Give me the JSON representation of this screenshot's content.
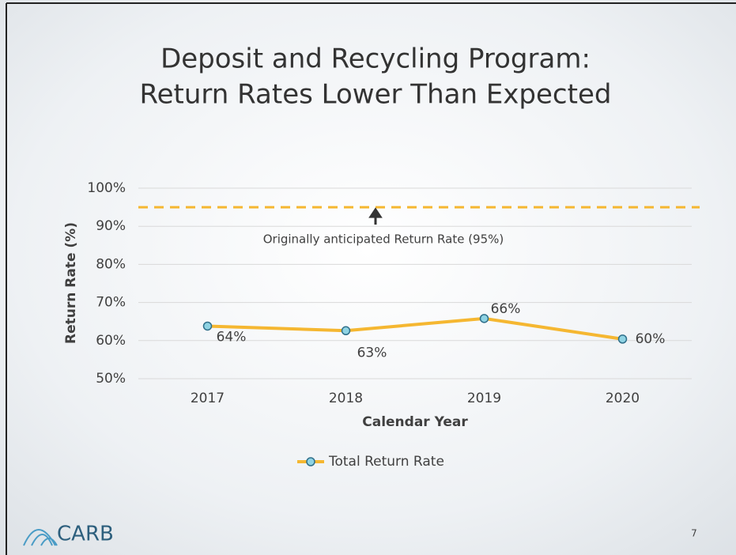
{
  "chart_data": {
    "type": "line",
    "title": [
      "Deposit and Recycling Program:",
      "Return Rates Lower Than Expected"
    ],
    "y_label": "Return Rate (%)",
    "x_label": "Calendar Year",
    "categories": [
      "2017",
      "2018",
      "2019",
      "2020"
    ],
    "series": [
      {
        "name": "Total Return Rate",
        "color": "#f5b731",
        "marker_color": "#8fd3e3",
        "values": [
          63.8,
          62.6,
          65.8,
          60.4
        ],
        "value_labels": [
          "64%",
          "63%",
          "66%",
          "60%"
        ]
      }
    ],
    "ylim": [
      50,
      100
    ],
    "yticks": [
      {
        "value": 50,
        "label": "50%"
      },
      {
        "value": 60,
        "label": "60%"
      },
      {
        "value": 70,
        "label": "70%"
      },
      {
        "value": 80,
        "label": "80%"
      },
      {
        "value": 90,
        "label": "90%"
      },
      {
        "value": 100,
        "label": "100%"
      }
    ],
    "grid": true,
    "legend": "bottom",
    "reference_line": {
      "value": 95,
      "color": "#f5b731",
      "label": "Originally anticipated Return Rate (95%)"
    }
  },
  "footer": {
    "logo": "CARB",
    "slide_number": "7"
  }
}
